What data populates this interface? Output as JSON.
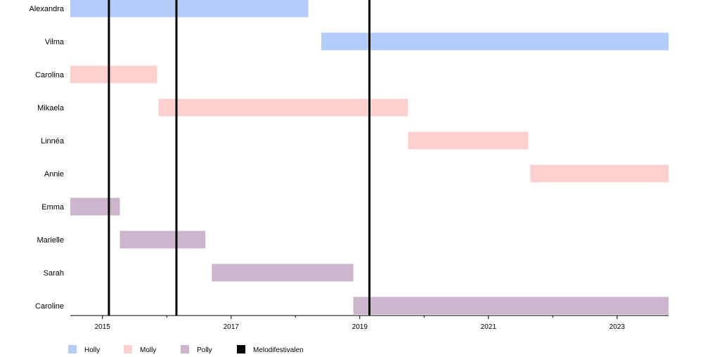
{
  "chart_data": {
    "type": "bar",
    "orientation": "horizontal-timeline",
    "title": "",
    "xlabel": "",
    "ylabel": "",
    "xlim": [
      2014.5,
      2023.8
    ],
    "x_ticks": [
      2015,
      2017,
      2019,
      2021,
      2023
    ],
    "x_tick_labels": [
      "2015",
      "2017",
      "2019",
      "2021",
      "2023"
    ],
    "grid": false,
    "legend_position": "bottom-left",
    "categories": [
      "Alexandra",
      "Vilma",
      "Carolina",
      "Mikaela",
      "Linnéa",
      "Annie",
      "Emma",
      "Marielle",
      "Sarah",
      "Caroline"
    ],
    "groups": [
      {
        "name": "Holly",
        "color": "#b3cdf8"
      },
      {
        "name": "Molly",
        "color": "#fdd0d0"
      },
      {
        "name": "Polly",
        "color": "#cdb5cd"
      }
    ],
    "bars": [
      {
        "member": "Alexandra",
        "group": "Holly",
        "start": 2014.5,
        "end": 2018.2
      },
      {
        "member": "Vilma",
        "group": "Holly",
        "start": 2018.4,
        "end": 2023.8
      },
      {
        "member": "Carolina",
        "group": "Molly",
        "start": 2014.5,
        "end": 2015.85
      },
      {
        "member": "Mikaela",
        "group": "Molly",
        "start": 2015.87,
        "end": 2019.75
      },
      {
        "member": "Linnéa",
        "group": "Molly",
        "start": 2019.75,
        "end": 2021.62
      },
      {
        "member": "Annie",
        "group": "Molly",
        "start": 2021.65,
        "end": 2023.8
      },
      {
        "member": "Emma",
        "group": "Polly",
        "start": 2014.5,
        "end": 2015.27
      },
      {
        "member": "Marielle",
        "group": "Polly",
        "start": 2015.27,
        "end": 2016.6
      },
      {
        "member": "Sarah",
        "group": "Polly",
        "start": 2016.7,
        "end": 2018.9
      },
      {
        "member": "Caroline",
        "group": "Polly",
        "start": 2018.9,
        "end": 2023.8
      }
    ],
    "events": {
      "name": "Melodifestivalen",
      "color": "#000000",
      "dates": [
        2015.1,
        2016.15,
        2019.15
      ]
    }
  }
}
